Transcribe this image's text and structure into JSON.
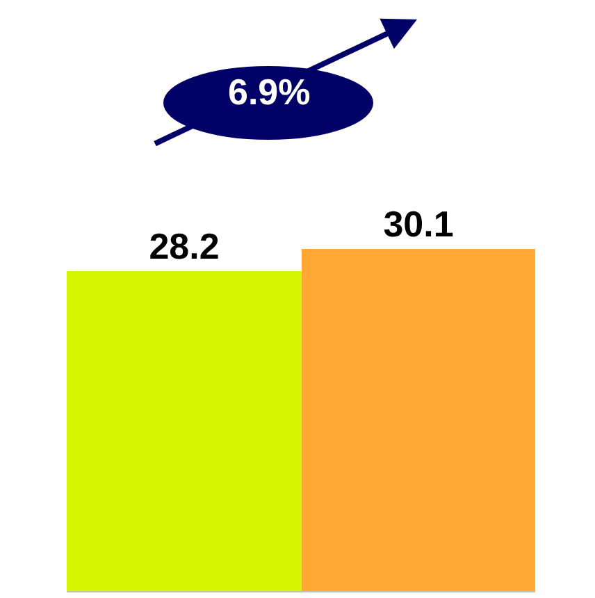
{
  "chart_data": {
    "type": "bar",
    "categories": [
      null,
      null
    ],
    "values": [
      28.2,
      30.1
    ],
    "colors": [
      "#d4f700",
      "#ffa833"
    ],
    "data_labels": true,
    "ylim": [
      0,
      52
    ],
    "tick_labels": false,
    "annotations": [
      "6.9%"
    ]
  }
}
